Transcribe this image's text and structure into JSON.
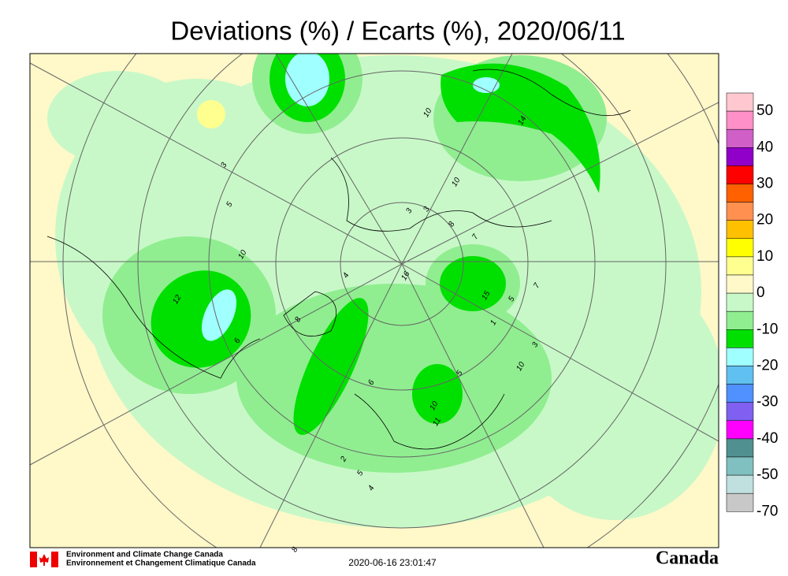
{
  "header": {
    "title": "Deviations (%) / Ecarts (%), 2020/06/11"
  },
  "colorbar": {
    "labels": [
      "50",
      "40",
      "30",
      "20",
      "10",
      "0",
      "-10",
      "-20",
      "-30",
      "-40",
      "-50",
      "-70"
    ],
    "colors": [
      "#ffc8d0",
      "#ff90c8",
      "#d060c8",
      "#9000c8",
      "#ff0000",
      "#ff6000",
      "#ff9050",
      "#ffc000",
      "#ffff00",
      "#ffff90",
      "#fff8c8",
      "#c8f8c8",
      "#90ee90",
      "#00e000",
      "#a0ffff",
      "#60c0f0",
      "#5090ff",
      "#8060f0",
      "#ff00ff",
      "#509090",
      "#80c0c0",
      "#c0e0e0",
      "#c8c8c8"
    ]
  },
  "stations": [
    "10",
    "14",
    "3",
    "5",
    "10",
    "3",
    "3",
    "8",
    "7",
    "10",
    "4",
    "16",
    "15",
    "5",
    "7",
    "12",
    "8",
    "6",
    "1",
    "6",
    "3",
    "10",
    "5",
    "10",
    "11",
    "2",
    "5",
    "4",
    "8"
  ],
  "footer": {
    "agency_en": "Environment and Climate Change Canada",
    "agency_fr": "Environnement et Changement Climatique Canada",
    "timestamp": "2020-06-16 23:01:47",
    "wordmark": "Canada"
  }
}
